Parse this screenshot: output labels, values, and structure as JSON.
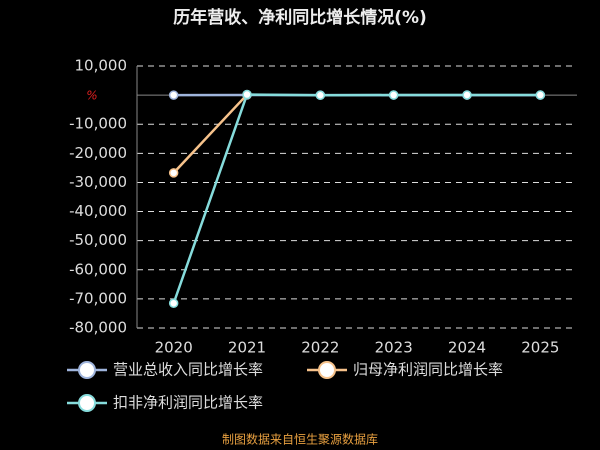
{
  "chart_data": {
    "type": "line",
    "title": "历年营收、净利同比增长情况(%)",
    "y_unit": "%",
    "categories": [
      "2020",
      "2021",
      "2022",
      "2023",
      "2024",
      "2025"
    ],
    "series": [
      {
        "name": "营业总收入同比增长率",
        "color": "#9fb4dc",
        "values": [
          10,
          20,
          -5,
          15,
          12,
          10
        ]
      },
      {
        "name": "归母净利润同比增长率",
        "color": "#f6c28b",
        "values": [
          -26700,
          150,
          null,
          null,
          null,
          null
        ]
      },
      {
        "name": "扣非净利润同比增长率",
        "color": "#86dcdc",
        "values": [
          -71500,
          200,
          -50,
          30,
          40,
          20
        ]
      }
    ],
    "ylim": [
      -80000,
      10000
    ],
    "yticks": [
      {
        "value": 10000,
        "label": "10,000"
      },
      {
        "value": -10000,
        "label": "-10,000"
      },
      {
        "value": -20000,
        "label": "-20,000"
      },
      {
        "value": -30000,
        "label": "-30,000"
      },
      {
        "value": -40000,
        "label": "-40,000"
      },
      {
        "value": -50000,
        "label": "-50,000"
      },
      {
        "value": -60000,
        "label": "-60,000"
      },
      {
        "value": -70000,
        "label": "-70,000"
      },
      {
        "value": -80000,
        "label": "-80,000"
      }
    ],
    "grid": true,
    "source": "制图数据来自恒生聚源数据库"
  }
}
